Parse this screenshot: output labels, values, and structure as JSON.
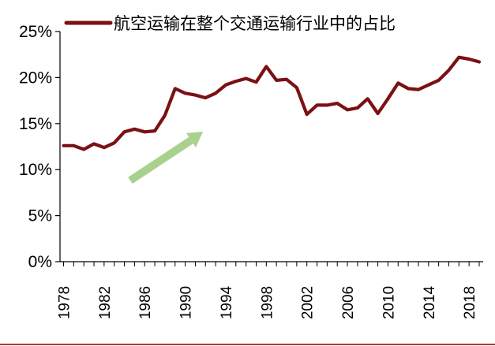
{
  "chart_data": {
    "type": "line",
    "title": "",
    "xlabel": "",
    "ylabel": "",
    "ylim": [
      0,
      0.25
    ],
    "xlim": [
      1978,
      2019
    ],
    "y_ticks": [
      "0%",
      "5%",
      "10%",
      "15%",
      "20%",
      "25%"
    ],
    "x_ticks": [
      "1978",
      "1982",
      "1986",
      "1990",
      "1994",
      "1998",
      "2002",
      "2006",
      "2010",
      "2014",
      "2018"
    ],
    "grid": false,
    "legend_position": "top",
    "series": [
      {
        "name": "航空运输在整个交通运输行业中的占比",
        "color": "#7b1113",
        "x": [
          1978,
          1979,
          1980,
          1981,
          1982,
          1983,
          1984,
          1985,
          1986,
          1987,
          1988,
          1989,
          1990,
          1991,
          1992,
          1993,
          1994,
          1995,
          1996,
          1997,
          1998,
          1999,
          2000,
          2001,
          2002,
          2003,
          2004,
          2005,
          2006,
          2007,
          2008,
          2009,
          2010,
          2011,
          2012,
          2013,
          2014,
          2015,
          2016,
          2017,
          2018,
          2019
        ],
        "y": [
          0.126,
          0.126,
          0.122,
          0.128,
          0.124,
          0.129,
          0.141,
          0.144,
          0.141,
          0.142,
          0.159,
          0.188,
          0.183,
          0.181,
          0.178,
          0.183,
          0.192,
          0.196,
          0.199,
          0.195,
          0.212,
          0.197,
          0.198,
          0.189,
          0.16,
          0.17,
          0.17,
          0.172,
          0.165,
          0.167,
          0.177,
          0.161,
          0.177,
          0.194,
          0.188,
          0.187,
          0.192,
          0.197,
          0.208,
          0.222,
          0.22,
          0.217
        ]
      }
    ],
    "annotations": [
      {
        "type": "arrow",
        "color": "#a9d18e",
        "direction": "up-right"
      }
    ]
  }
}
